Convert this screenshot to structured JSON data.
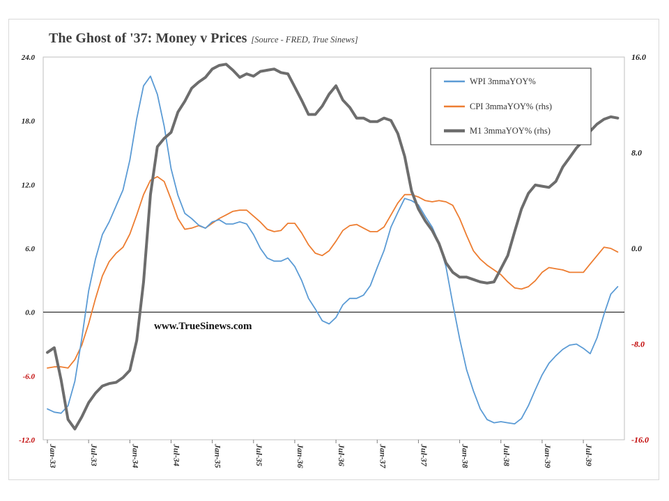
{
  "chart_data": {
    "type": "line",
    "title": "The Ghost of '37: Money v Prices",
    "subtitle": "[Source -  FRED, True Sinews]",
    "annotation": "www.TrueSinews.com",
    "x_tick_labels": [
      "Jan-33",
      "Jul-33",
      "Jan-34",
      "Jul-34",
      "Jan-35",
      "Jul-35",
      "Jan-36",
      "Jul-36",
      "Jan-37",
      "Jul-37",
      "Jan-38",
      "Jul-38",
      "Jan-39",
      "Jul-39"
    ],
    "x_months": [
      "Jan-33",
      "Feb-33",
      "Mar-33",
      "Apr-33",
      "May-33",
      "Jun-33",
      "Jul-33",
      "Aug-33",
      "Sep-33",
      "Oct-33",
      "Nov-33",
      "Dec-33",
      "Jan-34",
      "Feb-34",
      "Mar-34",
      "Apr-34",
      "May-34",
      "Jun-34",
      "Jul-34",
      "Aug-34",
      "Sep-34",
      "Oct-34",
      "Nov-34",
      "Dec-34",
      "Jan-35",
      "Feb-35",
      "Mar-35",
      "Apr-35",
      "May-35",
      "Jun-35",
      "Jul-35",
      "Aug-35",
      "Sep-35",
      "Oct-35",
      "Nov-35",
      "Dec-35",
      "Jan-36",
      "Feb-36",
      "Mar-36",
      "Apr-36",
      "May-36",
      "Jun-36",
      "Jul-36",
      "Aug-36",
      "Sep-36",
      "Oct-36",
      "Nov-36",
      "Dec-36",
      "Jan-37",
      "Feb-37",
      "Mar-37",
      "Apr-37",
      "May-37",
      "Jun-37",
      "Jul-37",
      "Aug-37",
      "Sep-37",
      "Oct-37",
      "Nov-37",
      "Dec-37",
      "Jan-38",
      "Feb-38",
      "Mar-38",
      "Apr-38",
      "May-38",
      "Jun-38",
      "Jul-38",
      "Aug-38",
      "Sep-38",
      "Oct-38",
      "Nov-38",
      "Dec-38",
      "Jan-39",
      "Feb-39",
      "Mar-39",
      "Apr-39",
      "May-39",
      "Jun-39",
      "Jul-39",
      "Aug-39",
      "Sep-39",
      "Oct-39",
      "Nov-39",
      "Dec-39"
    ],
    "y_left": {
      "ticks": [
        "24.0",
        "18.0",
        "12.0",
        "6.0",
        "0.0",
        "-6.0",
        "-12.0"
      ],
      "min": -12,
      "max": 24
    },
    "y_right": {
      "ticks": [
        "16.0",
        "8.0",
        "0.0",
        "-8.0",
        "-16.0"
      ],
      "min": -16,
      "max": 16
    },
    "tick_colors": {
      "positive": "#1f1f1f",
      "negative": "#c00000"
    },
    "zero_line": true,
    "grid": false,
    "legend_position": "top-right",
    "series": [
      {
        "name": "WPI 3mmaYOY%",
        "axis": "left",
        "color": "#5b9bd5",
        "width": 1.8,
        "values": [
          -9.1,
          -9.4,
          -9.5,
          -8.8,
          -6.5,
          -2.5,
          2.0,
          5.0,
          7.3,
          8.5,
          10.0,
          11.5,
          14.3,
          18.2,
          21.3,
          22.2,
          20.5,
          17.5,
          13.5,
          11.0,
          9.3,
          8.8,
          8.2,
          7.9,
          8.5,
          8.7,
          8.3,
          8.3,
          8.5,
          8.3,
          7.3,
          6.0,
          5.1,
          4.8,
          4.8,
          5.1,
          4.3,
          3.0,
          1.3,
          0.3,
          -0.8,
          -1.1,
          -0.5,
          0.7,
          1.3,
          1.3,
          1.6,
          2.5,
          4.2,
          5.8,
          8.0,
          9.4,
          10.7,
          10.5,
          10.1,
          9.0,
          8.0,
          6.5,
          4.3,
          0.8,
          -2.5,
          -5.4,
          -7.4,
          -9.1,
          -10.1,
          -10.4,
          -10.3,
          -10.4,
          -10.5,
          -10.0,
          -8.8,
          -7.3,
          -5.9,
          -4.8,
          -4.1,
          -3.5,
          -3.1,
          -3.0,
          -3.4,
          -3.9,
          -2.4,
          -0.2,
          1.7,
          2.4
        ]
      },
      {
        "name": "CPI 3mmaYOY% (rhs)",
        "axis": "right",
        "color": "#ed7d31",
        "width": 1.8,
        "values": [
          -10.0,
          -9.9,
          -9.9,
          -10.0,
          -9.3,
          -8.1,
          -6.3,
          -4.2,
          -2.3,
          -1.1,
          -0.4,
          0.1,
          1.2,
          2.8,
          4.5,
          5.7,
          6.0,
          5.6,
          4.1,
          2.5,
          1.6,
          1.7,
          1.9,
          1.7,
          2.1,
          2.5,
          2.8,
          3.1,
          3.2,
          3.2,
          2.7,
          2.2,
          1.6,
          1.4,
          1.5,
          2.1,
          2.1,
          1.3,
          0.3,
          -0.4,
          -0.6,
          -0.2,
          0.6,
          1.5,
          1.9,
          2.0,
          1.7,
          1.4,
          1.4,
          1.8,
          2.8,
          3.8,
          4.5,
          4.5,
          4.3,
          4.0,
          3.9,
          4.0,
          3.9,
          3.6,
          2.5,
          1.1,
          -0.2,
          -0.9,
          -1.4,
          -1.8,
          -2.2,
          -2.8,
          -3.3,
          -3.4,
          -3.2,
          -2.7,
          -2.0,
          -1.6,
          -1.7,
          -1.8,
          -2.0,
          -2.0,
          -2.0,
          -1.3,
          -0.6,
          0.1,
          0.0,
          -0.3
        ]
      },
      {
        "name": "M1 3mmaYOY% (rhs)",
        "axis": "right",
        "color": "#6d6d6d",
        "width": 4,
        "values": [
          -8.7,
          -8.3,
          -11.0,
          -14.3,
          -15.1,
          -14.1,
          -12.9,
          -12.1,
          -11.5,
          -11.3,
          -11.2,
          -10.8,
          -10.2,
          -7.7,
          -2.8,
          4.5,
          8.5,
          9.2,
          9.7,
          11.4,
          12.3,
          13.4,
          13.9,
          14.3,
          15.0,
          15.3,
          15.4,
          14.9,
          14.3,
          14.6,
          14.4,
          14.8,
          14.9,
          15.0,
          14.7,
          14.6,
          13.5,
          12.4,
          11.2,
          11.2,
          11.9,
          12.9,
          13.6,
          12.4,
          11.8,
          10.9,
          10.9,
          10.6,
          10.6,
          10.9,
          10.7,
          9.6,
          7.7,
          4.8,
          3.3,
          2.3,
          1.5,
          0.4,
          -1.2,
          -2.0,
          -2.4,
          -2.4,
          -2.6,
          -2.8,
          -2.9,
          -2.8,
          -1.7,
          -0.6,
          1.4,
          3.3,
          4.6,
          5.3,
          5.2,
          5.1,
          5.6,
          6.8,
          7.6,
          8.4,
          9.0,
          9.8,
          10.4,
          10.8,
          11.0,
          10.9
        ]
      }
    ]
  }
}
